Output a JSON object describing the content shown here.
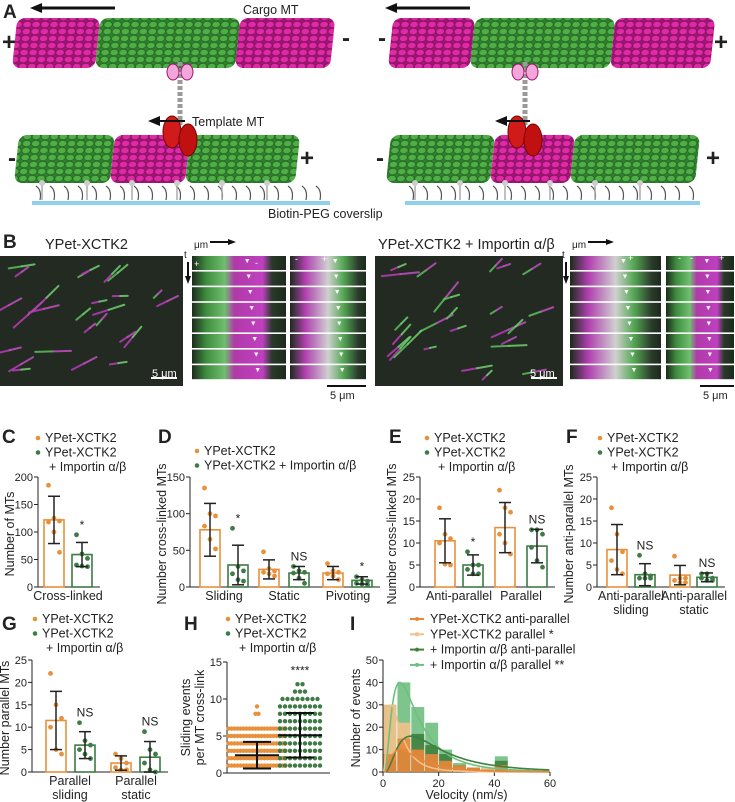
{
  "panel_letters": {
    "A": "A",
    "B": "B",
    "C": "C",
    "D": "D",
    "E": "E",
    "F": "F",
    "G": "G",
    "H": "H",
    "I": "I"
  },
  "panel_a": {
    "cargo_label": "Cargo MT",
    "template_label": "Template MT",
    "coverslip_label": "Biotin-PEG coverslip",
    "left": {
      "cargo_left": "+",
      "cargo_right": "-",
      "template_left": "-",
      "template_right": "+"
    },
    "right": {
      "cargo_left": "-",
      "cargo_right": "+",
      "template_left": "-",
      "template_right": "+"
    },
    "colors": {
      "tubulin_green": "#3c9a3c",
      "tubulin_magenta": "#d6209a",
      "motor_red": "#d11a1a",
      "coverslip_blue": "#8fd0ea"
    }
  },
  "panel_b": {
    "left_title": "YPet-XCTK2",
    "right_title": "YPet-XCTK2 + Importin α/β",
    "distance_axis": "μm",
    "time_axis": "t",
    "scale_bar": "5 μm",
    "kymo_plus": "+",
    "kymo_minus": "-"
  },
  "chart_data": [
    {
      "panel": "C",
      "type": "bar",
      "ylabel": "Number of MTs",
      "ylim": [
        0,
        200
      ],
      "yticks": [
        "0",
        "50",
        "100",
        "150",
        "200"
      ],
      "legend": [
        {
          "text": "YPet-XCTK2",
          "color": "#e8913c"
        },
        {
          "text": "YPet-XCTK2",
          "color": "#3e7b45"
        },
        {
          "text": "+ Importin α/β"
        }
      ],
      "categories": [
        [
          "Cross-linked"
        ]
      ],
      "series": [
        {
          "color": "#e8913c",
          "means": [
            122
          ],
          "sds": [
            43
          ],
          "points": [
            [
              185,
              125,
              120,
              118,
              100,
              63
            ]
          ],
          "annotations": [
            ""
          ]
        },
        {
          "color": "#3e7b45",
          "means": [
            59
          ],
          "sds": [
            22
          ],
          "points": [
            [
              95,
              60,
              52,
              40,
              38,
              37
            ]
          ],
          "annotations": [
            "*"
          ]
        }
      ]
    },
    {
      "panel": "D",
      "type": "bar",
      "ylabel": "Number cross-linked MTs",
      "ylim": [
        0,
        150
      ],
      "yticks": [
        "0",
        "50",
        "100",
        "150"
      ],
      "legend": [
        {
          "text": "YPet-XCTK2",
          "color": "#e8913c"
        },
        {
          "text": "YPet-XCTK2 + Importin α/β",
          "color": "#3e7b45"
        }
      ],
      "categories": [
        [
          "Sliding"
        ],
        [
          "Static"
        ],
        [
          "Pivoting"
        ]
      ],
      "series": [
        {
          "color": "#e8913c",
          "means": [
            78,
            24,
            19
          ],
          "sds": [
            36,
            13,
            9
          ],
          "points": [
            [
              135,
              100,
              97,
              83,
              65,
              52
            ],
            [
              48,
              25,
              22,
              20,
              18,
              15
            ],
            [
              32,
              22,
              20,
              18,
              15,
              10
            ]
          ],
          "annotations": [
            "",
            "",
            ""
          ]
        },
        {
          "color": "#3e7b45",
          "means": [
            30,
            19,
            9
          ],
          "sds": [
            27,
            9,
            5
          ],
          "points": [
            [
              80,
              28,
              22,
              18,
              10,
              8
            ],
            [
              28,
              22,
              20,
              19,
              12,
              5
            ],
            [
              14,
              10,
              8,
              5,
              4,
              3
            ]
          ],
          "annotations": [
            "*",
            "NS",
            "*"
          ]
        }
      ]
    },
    {
      "panel": "E",
      "type": "bar",
      "ylabel": "Number cross-linked MTs",
      "ylim": [
        0,
        25
      ],
      "yticks": [
        "0",
        "5",
        "10",
        "15",
        "20",
        "25"
      ],
      "legend": [
        {
          "text": "YPet-XCTK2",
          "color": "#e8913c"
        },
        {
          "text": "YPet-XCTK2",
          "color": "#3e7b45"
        },
        {
          "text": "+ Importin α/β"
        }
      ],
      "categories": [
        [
          "Anti-parallel"
        ],
        [
          "Parallel"
        ]
      ],
      "series": [
        {
          "color": "#e8913c",
          "means": [
            10.5,
            13.5
          ],
          "sds": [
            5,
            5.7
          ],
          "points": [
            [
              18,
              12,
              11,
              10,
              5.2,
              5
            ],
            [
              22,
              18,
              17,
              12,
              10,
              7.5
            ]
          ],
          "annotations": [
            "",
            ""
          ]
        },
        {
          "color": "#3e7b45",
          "means": [
            5,
            9.3
          ],
          "sds": [
            2.3,
            3.8
          ],
          "points": [
            [
              8,
              5,
              5,
              4,
              3,
              3
            ],
            [
              13,
              13,
              12,
              9,
              6,
              4.5
            ]
          ],
          "annotations": [
            "*",
            "NS"
          ]
        }
      ]
    },
    {
      "panel": "F",
      "type": "bar",
      "ylabel": "Number anti-parallel MTs",
      "ylim": [
        0,
        25
      ],
      "yticks": [
        "0",
        "5",
        "10",
        "15",
        "20",
        "25"
      ],
      "legend": [
        {
          "text": "YPet-XCTK2",
          "color": "#e8913c"
        },
        {
          "text": "YPet-XCTK2",
          "color": "#3e7b45"
        },
        {
          "text": "+ Importin α/β"
        }
      ],
      "categories": [
        [
          "Anti-parallel",
          "sliding"
        ],
        [
          "Anti-parallel",
          "static"
        ]
      ],
      "series": [
        {
          "color": "#e8913c",
          "means": [
            8.5,
            2.7
          ],
          "sds": [
            5.7,
            2.2
          ],
          "points": [
            [
              18,
              12,
              8,
              6,
              4,
              3
            ],
            [
              7,
              2,
              2,
              1.5,
              1,
              1
            ]
          ],
          "annotations": [
            "",
            ""
          ]
        },
        {
          "color": "#3e7b45",
          "means": [
            2.8,
            2.2
          ],
          "sds": [
            2.5,
            1
          ],
          "points": [
            [
              7.2,
              3,
              2.5,
              2,
              2,
              2
            ],
            [
              3,
              3,
              2,
              2,
              1.5,
              1.5
            ]
          ],
          "annotations": [
            "NS",
            "NS"
          ]
        }
      ]
    },
    {
      "panel": "G",
      "type": "bar",
      "ylabel": "Number parallel MTs",
      "ylim": [
        0,
        25
      ],
      "yticks": [
        "0",
        "5",
        "10",
        "15",
        "20",
        "25"
      ],
      "legend": [
        {
          "text": "YPet-XCTK2",
          "color": "#e8913c"
        },
        {
          "text": "YPet-XCTK2",
          "color": "#3e7b45"
        },
        {
          "text": "+ Importin α/β"
        }
      ],
      "categories": [
        [
          "Parallel",
          "sliding"
        ],
        [
          "Parallel",
          "static"
        ]
      ],
      "series": [
        {
          "color": "#e8913c",
          "means": [
            11.5,
            2
          ],
          "sds": [
            6.5,
            1.6
          ],
          "points": [
            [
              22,
              15,
              12,
              10,
              5,
              4
            ],
            [
              4,
              3,
              2,
              1,
              0.5,
              0.5
            ]
          ],
          "annotations": [
            "",
            ""
          ]
        },
        {
          "color": "#3e7b45",
          "means": [
            6,
            3.3
          ],
          "sds": [
            3,
            3.5
          ],
          "points": [
            [
              11,
              7,
              6,
              5,
              4,
              3
            ],
            [
              9,
              5,
              4,
              2,
              0.5,
              0
            ]
          ],
          "annotations": [
            "NS",
            "NS"
          ]
        }
      ]
    },
    {
      "panel": "H",
      "type": "scatter",
      "ylabel": [
        "Sliding events",
        "per MT cross-link"
      ],
      "ylim": [
        0,
        15
      ],
      "yticks": [
        "0",
        "5",
        "10",
        "15"
      ],
      "legend": [
        {
          "text": "YPet-XCTK2",
          "color": "#e8913c"
        },
        {
          "text": "YPet-XCTK2",
          "color": "#3e7b45"
        },
        {
          "text": "+ Importin α/β"
        }
      ],
      "series": [
        {
          "color": "#e8913c",
          "mean": 2.4,
          "sd": 1.8,
          "dot_rows": [
            [
              1,
              20
            ],
            [
              2,
              20
            ],
            [
              3,
              20
            ],
            [
              4,
              20
            ],
            [
              5,
              20
            ],
            [
              6,
              20
            ],
            [
              8,
              2
            ],
            [
              9,
              1
            ]
          ],
          "annotation": ""
        },
        {
          "color": "#3e7b45",
          "mean": 5.1,
          "sd": 3,
          "dot_rows": [
            [
              1,
              9
            ],
            [
              2,
              9
            ],
            [
              3,
              9
            ],
            [
              4,
              9
            ],
            [
              5,
              9
            ],
            [
              6,
              9
            ],
            [
              7,
              9
            ],
            [
              8,
              9
            ],
            [
              9,
              9
            ],
            [
              10,
              8
            ],
            [
              11,
              3
            ],
            [
              12,
              2
            ]
          ],
          "annotation": "****"
        }
      ]
    },
    {
      "panel": "I",
      "type": "bar",
      "xlabel": "Velocity (nm/s)",
      "ylabel": "Number of events",
      "xlim": [
        0,
        60
      ],
      "ylim": [
        0,
        50
      ],
      "xticks": [
        "0",
        "20",
        "40",
        "60"
      ],
      "yticks": [
        "0",
        "10",
        "20",
        "30",
        "40",
        "50"
      ],
      "bin_width": 5,
      "bin_starts": [
        0,
        5,
        10,
        15,
        20,
        25,
        30,
        35,
        40,
        45
      ],
      "series": [
        {
          "name": "+ Importin α/β parallel **",
          "color": "#6fbf7f",
          "counts": [
            30,
            40,
            29,
            22,
            10,
            4,
            2,
            1,
            7,
            1
          ],
          "fit_peak": [
            6,
            40
          ]
        },
        {
          "name": "YPet-XCTK2 parallel *",
          "color": "#f2c08a",
          "counts": [
            30,
            22,
            12,
            5,
            2,
            1,
            1,
            2,
            1,
            1
          ],
          "fit_peak": [
            3,
            30
          ]
        },
        {
          "name": "+ Importin α/β anti-parallel",
          "color": "#3f7f3f",
          "counts": [
            5,
            10,
            17,
            12,
            8,
            3,
            2,
            1,
            5,
            0
          ],
          "fit_peak": [
            10,
            16
          ]
        },
        {
          "name": "YPet-XCTK2 anti-parallel",
          "color": "#e8873a",
          "counts": [
            8,
            15,
            10,
            8,
            5,
            3,
            2,
            1,
            3,
            0
          ],
          "fit_peak": [
            6,
            10
          ]
        }
      ],
      "legend_order": [
        3,
        1,
        2,
        0
      ]
    }
  ]
}
